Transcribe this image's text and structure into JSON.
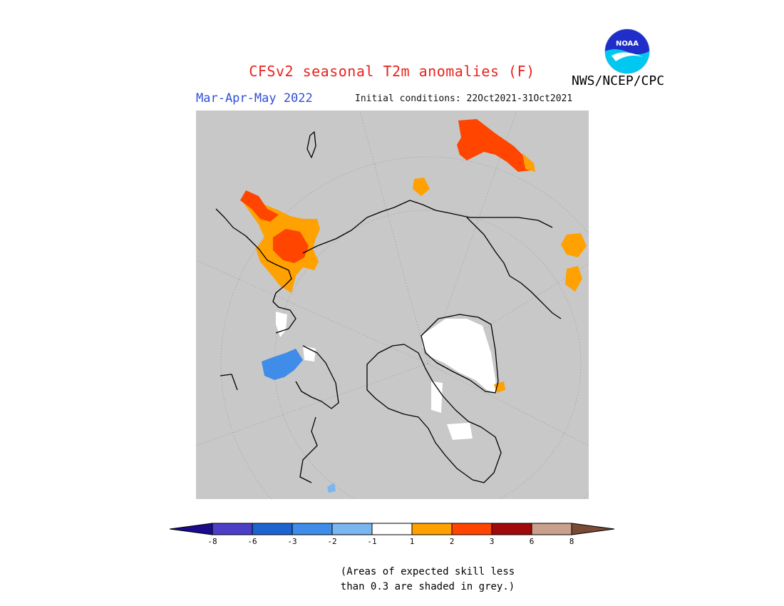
{
  "header": {
    "title": "CFSv2 seasonal T2m anomalies (F)",
    "period": "Mar-Apr-May 2022",
    "initial_conditions": "Initial conditions: 22Oct2021-31Oct2021",
    "agency": "NWS/NCEP/CPC",
    "logo_text": "NOAA"
  },
  "legend": {
    "ticks": [
      "-8",
      "-6",
      "-3",
      "-2",
      "-1",
      "1",
      "2",
      "3",
      "6",
      "8"
    ],
    "colors": {
      "lt_-8": "#1a0a8c",
      "-8_-6": "#4b3fc8",
      "-6_-3": "#1e64d0",
      "-3_-2": "#3f8de8",
      "-2_-1": "#7ab6ef",
      "-1_1": "#ffffff",
      "1_2": "#ffa100",
      "2_3": "#ff4500",
      "3_6": "#a00a0a",
      "6_8": "#c8a08c",
      "gt_8": "#7a4a34"
    }
  },
  "note": {
    "line1": "(Areas of expected skill less",
    "line2": "than 0.3 are shaded in grey.)"
  },
  "map": {
    "projection": "north-polar-stereographic",
    "background_color": "#c8c8c8",
    "regions": [
      {
        "name": "eastern-siberia",
        "category": "2_3"
      },
      {
        "name": "northeast-asia-fringe",
        "category": "1_2"
      },
      {
        "name": "northern-china",
        "category": "2_3"
      },
      {
        "name": "central-asia",
        "category": "1_2"
      },
      {
        "name": "india-fringe",
        "category": "-1_1"
      },
      {
        "name": "arabia-east-africa",
        "category": "-3_-2"
      },
      {
        "name": "greenland",
        "category": "-1_1"
      },
      {
        "name": "north-america-fragments",
        "category": "-1_1"
      },
      {
        "name": "alaska-coast",
        "category": "1_2"
      },
      {
        "name": "mexico",
        "category": "1_2"
      }
    ]
  }
}
